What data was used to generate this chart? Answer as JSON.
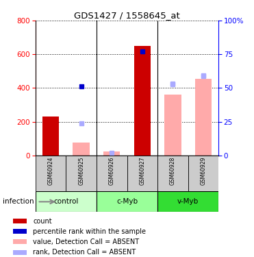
{
  "title": "GDS1427 / 1558645_at",
  "samples": [
    "GSM60924",
    "GSM60925",
    "GSM60926",
    "GSM60927",
    "GSM60928",
    "GSM60929"
  ],
  "count_values": [
    230,
    null,
    null,
    648,
    null,
    null
  ],
  "absent_values": [
    null,
    75,
    25,
    null,
    360,
    455
  ],
  "absent_rank_values": [
    null,
    190,
    15,
    null,
    425,
    475
  ],
  "percentile_rank": [
    null,
    51,
    null,
    77,
    null,
    null
  ],
  "absent_pct_rank": [
    null,
    null,
    null,
    null,
    53,
    59
  ],
  "left_ylim": [
    0,
    800
  ],
  "right_ylim": [
    0,
    100
  ],
  "left_yticks": [
    0,
    200,
    400,
    600,
    800
  ],
  "right_yticks": [
    0,
    25,
    50,
    75,
    100
  ],
  "right_yticklabels": [
    "0",
    "25",
    "50",
    "75",
    "100%"
  ],
  "count_color": "#cc0000",
  "absent_value_color": "#ffaaaa",
  "absent_rank_color": "#aaaaff",
  "percentile_color": "#0000cc",
  "absent_pct_color": "#aaaaff",
  "sample_bg_color": "#cccccc",
  "groups": [
    {
      "name": "control",
      "start": 0,
      "end": 1,
      "color": "#ccffcc"
    },
    {
      "name": "c-Myb",
      "start": 2,
      "end": 3,
      "color": "#99ff99"
    },
    {
      "name": "v-Myb",
      "start": 4,
      "end": 5,
      "color": "#33dd33"
    }
  ],
  "legend_items": [
    {
      "color": "#cc0000",
      "label": "count"
    },
    {
      "color": "#0000cc",
      "label": "percentile rank within the sample"
    },
    {
      "color": "#ffaaaa",
      "label": "value, Detection Call = ABSENT"
    },
    {
      "color": "#aaaaff",
      "label": "rank, Detection Call = ABSENT"
    }
  ]
}
